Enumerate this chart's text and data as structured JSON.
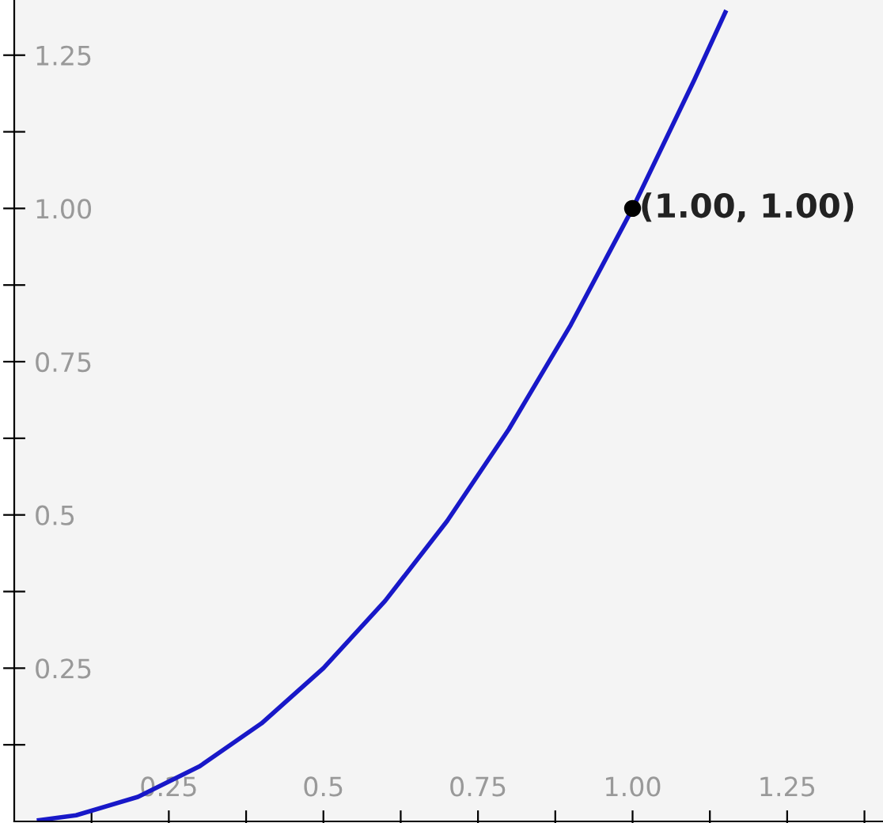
{
  "chart_data": {
    "type": "line",
    "x": [
      0.04,
      0.1,
      0.2,
      0.3,
      0.4,
      0.5,
      0.6,
      0.7,
      0.8,
      0.9,
      1.0,
      1.1,
      1.15
    ],
    "series": [
      {
        "color": "#1818c8",
        "values": [
          0.002,
          0.01,
          0.04,
          0.09,
          0.16,
          0.25,
          0.36,
          0.49,
          0.64,
          0.81,
          1.0,
          1.21,
          1.32
        ]
      },
      {
        "type": "scatter",
        "x": [
          1.0
        ],
        "color": "#000000",
        "values": [
          1.0
        ]
      }
    ],
    "annotations": [
      {
        "text": "(1.00, 1.00)",
        "x": 1.0,
        "y": 1.0
      }
    ],
    "xlim": [
      0,
      1.405
    ],
    "ylim": [
      0,
      1.34
    ],
    "xticks": [
      {
        "value": 0.125,
        "label": null
      },
      {
        "value": 0.25,
        "label": "0.25"
      },
      {
        "value": 0.375,
        "label": null
      },
      {
        "value": 0.5,
        "label": "0.5"
      },
      {
        "value": 0.625,
        "label": null
      },
      {
        "value": 0.75,
        "label": "0.75"
      },
      {
        "value": 0.875,
        "label": null
      },
      {
        "value": 1.0,
        "label": "1.00"
      },
      {
        "value": 1.125,
        "label": null
      },
      {
        "value": 1.25,
        "label": "1.25"
      },
      {
        "value": 1.375,
        "label": null
      }
    ],
    "yticks": [
      {
        "value": 0.125,
        "label": null
      },
      {
        "value": 0.25,
        "label": "0.25"
      },
      {
        "value": 0.375,
        "label": null
      },
      {
        "value": 0.5,
        "label": "0.5"
      },
      {
        "value": 0.625,
        "label": null
      },
      {
        "value": 0.75,
        "label": "0.75"
      },
      {
        "value": 0.875,
        "label": null
      },
      {
        "value": 1.0,
        "label": "1.00"
      },
      {
        "value": 1.125,
        "label": null
      },
      {
        "value": 1.25,
        "label": "1.25"
      }
    ],
    "grid": false
  }
}
